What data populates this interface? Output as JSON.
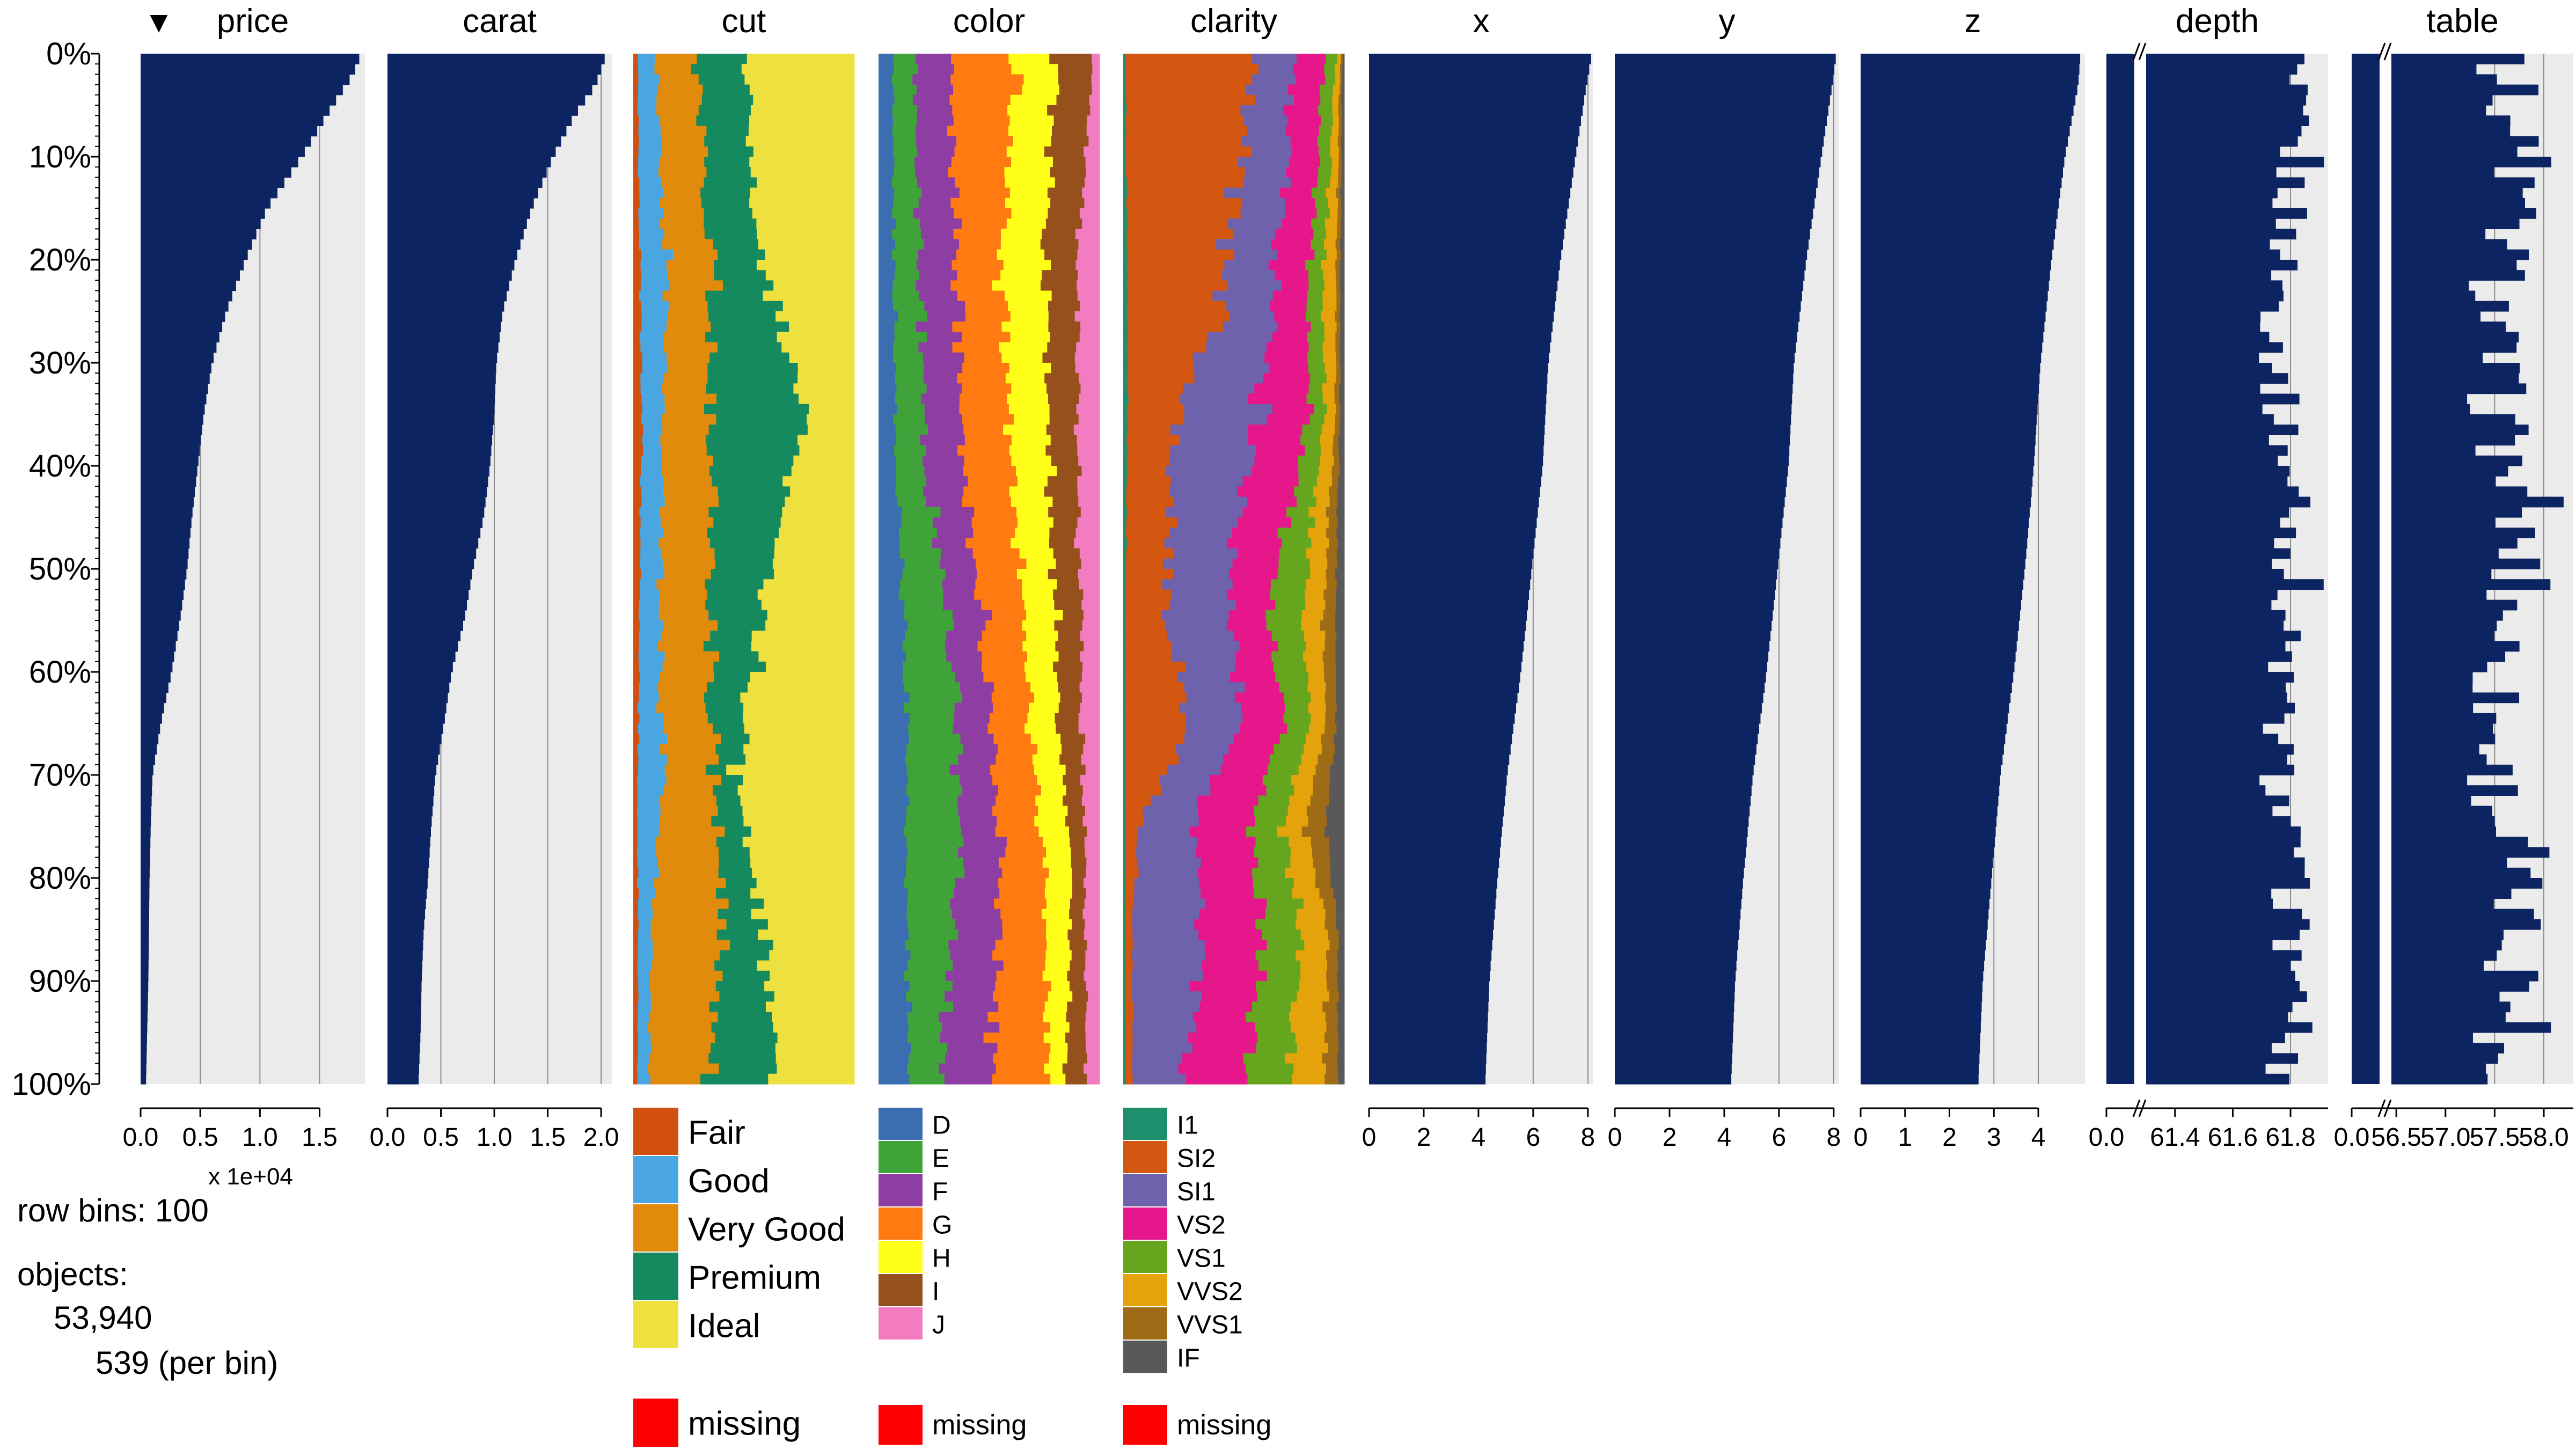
{
  "chart_data": {
    "type": "tableplot",
    "sort_column": "price",
    "sort_marker": "▼",
    "y_tick_labels": [
      "0%",
      "10%",
      "20%",
      "30%",
      "40%",
      "50%",
      "60%",
      "70%",
      "80%",
      "90%",
      "100%"
    ],
    "row_bins_text": "row bins: 100",
    "objects_label": "objects:",
    "objects_count": "53,940",
    "per_bin_text": "539 (per bin)",
    "missing_label": "missing",
    "colors": {
      "bar": "#0c2461",
      "panel_bg": "#ebebeb",
      "grid": "#8c8c8c",
      "missing": "#ff0000",
      "cut": [
        "#d14f0f",
        "#4aa6e0",
        "#e08b0c",
        "#158a5e",
        "#ede03f"
      ],
      "color": [
        "#3a6eb0",
        "#40a33a",
        "#8e3ea3",
        "#ff7a10",
        "#ffff1a",
        "#96501c",
        "#f27cbf"
      ],
      "clarity": [
        "#1d8f6c",
        "#d35710",
        "#6e62ad",
        "#e6168b",
        "#66a61e",
        "#e4a30a",
        "#9e6b16",
        "#595959"
      ]
    },
    "numeric_columns": [
      {
        "name": "price",
        "xlim": [
          0,
          18800
        ],
        "ticks": [
          0,
          5000,
          10000,
          15000
        ],
        "tick_labels": [
          "0.0",
          "0.5",
          "1.0",
          "1.5"
        ],
        "multiplier_text": "x 1e+04",
        "anchors": [
          [
            0,
            18500
          ],
          [
            2,
            17800
          ],
          [
            5,
            16100
          ],
          [
            10,
            13500
          ],
          [
            15,
            10600
          ],
          [
            20,
            8800
          ],
          [
            25,
            7200
          ],
          [
            30,
            6000
          ],
          [
            35,
            5300
          ],
          [
            40,
            4800
          ],
          [
            45,
            4300
          ],
          [
            50,
            3900
          ],
          [
            55,
            3300
          ],
          [
            60,
            2600
          ],
          [
            65,
            1700
          ],
          [
            70,
            1000
          ],
          [
            75,
            850
          ],
          [
            80,
            750
          ],
          [
            85,
            700
          ],
          [
            90,
            650
          ],
          [
            95,
            550
          ],
          [
            100,
            450
          ]
        ]
      },
      {
        "name": "carat",
        "xlim": [
          0,
          2.1
        ],
        "ticks": [
          0,
          0.5,
          1.0,
          1.5,
          2.0
        ],
        "tick_labels": [
          "0.0",
          "0.5",
          "1.0",
          "1.5",
          "2.0"
        ],
        "anchors": [
          [
            0,
            2.05
          ],
          [
            3,
            1.95
          ],
          [
            6,
            1.75
          ],
          [
            10,
            1.55
          ],
          [
            15,
            1.35
          ],
          [
            20,
            1.2
          ],
          [
            25,
            1.08
          ],
          [
            30,
            1.02
          ],
          [
            35,
            1.0
          ],
          [
            40,
            0.96
          ],
          [
            45,
            0.9
          ],
          [
            50,
            0.8
          ],
          [
            55,
            0.72
          ],
          [
            60,
            0.6
          ],
          [
            65,
            0.53
          ],
          [
            70,
            0.45
          ],
          [
            75,
            0.41
          ],
          [
            80,
            0.38
          ],
          [
            85,
            0.34
          ],
          [
            90,
            0.32
          ],
          [
            95,
            0.31
          ],
          [
            100,
            0.29
          ]
        ]
      },
      {
        "name": "x",
        "xlim": [
          0,
          8.2
        ],
        "ticks": [
          0,
          2,
          4,
          6,
          8
        ],
        "tick_labels": [
          "0",
          "2",
          "4",
          "6",
          "8"
        ],
        "anchors": [
          [
            0,
            8.15
          ],
          [
            3,
            7.95
          ],
          [
            10,
            7.55
          ],
          [
            20,
            7.0
          ],
          [
            30,
            6.55
          ],
          [
            40,
            6.35
          ],
          [
            50,
            5.95
          ],
          [
            60,
            5.55
          ],
          [
            70,
            5.05
          ],
          [
            80,
            4.7
          ],
          [
            90,
            4.4
          ],
          [
            100,
            4.25
          ]
        ]
      },
      {
        "name": "y",
        "xlim": [
          0,
          8.2
        ],
        "ticks": [
          0,
          2,
          4,
          6,
          8
        ],
        "tick_labels": [
          "0",
          "2",
          "4",
          "6",
          "8"
        ],
        "anchors": [
          [
            0,
            8.1
          ],
          [
            3,
            7.95
          ],
          [
            10,
            7.55
          ],
          [
            20,
            7.0
          ],
          [
            30,
            6.55
          ],
          [
            40,
            6.35
          ],
          [
            50,
            5.95
          ],
          [
            60,
            5.55
          ],
          [
            70,
            5.05
          ],
          [
            80,
            4.7
          ],
          [
            90,
            4.4
          ],
          [
            100,
            4.25
          ]
        ]
      },
      {
        "name": "z",
        "xlim": [
          0,
          5.05
        ],
        "ticks": [
          0,
          1,
          2,
          3,
          4
        ],
        "tick_labels": [
          "0",
          "1",
          "2",
          "3",
          "4"
        ],
        "anchors": [
          [
            0,
            4.95
          ],
          [
            3,
            4.9
          ],
          [
            10,
            4.6
          ],
          [
            20,
            4.3
          ],
          [
            30,
            4.05
          ],
          [
            40,
            3.9
          ],
          [
            50,
            3.7
          ],
          [
            60,
            3.45
          ],
          [
            70,
            3.15
          ],
          [
            80,
            2.95
          ],
          [
            90,
            2.75
          ],
          [
            100,
            2.65
          ]
        ]
      },
      {
        "name": "depth",
        "broken_axis": true,
        "low_value": 0.0,
        "break_start": 61.3,
        "xlim": [
          61.3,
          61.93
        ],
        "ticks": [
          61.4,
          61.6,
          61.8
        ],
        "tick_labels": [
          "0.0",
          "61.4",
          "61.6",
          "61.8"
        ],
        "base": 61.78,
        "amp": 0.1
      },
      {
        "name": "table",
        "broken_axis": true,
        "low_value": 0.0,
        "break_start": 56.45,
        "xlim": [
          56.45,
          58.3
        ],
        "ticks": [
          56.5,
          57.0,
          57.5,
          58.0
        ],
        "tick_labels": [
          "0.0",
          "56.5",
          "57.0",
          "57.5",
          "58.0"
        ],
        "base": 57.6,
        "amp": 0.45
      }
    ],
    "categorical_columns": [
      {
        "name": "cut",
        "categories": [
          "Fair",
          "Good",
          "Very Good",
          "Premium",
          "Ideal"
        ],
        "anchors": [
          [
            0,
            [
              0.02,
              0.08,
              0.19,
              0.22,
              0.49
            ]
          ],
          [
            20,
            [
              0.03,
              0.12,
              0.2,
              0.23,
              0.42
            ]
          ],
          [
            35,
            [
              0.04,
              0.1,
              0.21,
              0.42,
              0.23
            ]
          ],
          [
            50,
            [
              0.03,
              0.09,
              0.23,
              0.27,
              0.38
            ]
          ],
          [
            70,
            [
              0.02,
              0.12,
              0.22,
              0.11,
              0.53
            ]
          ],
          [
            85,
            [
              0.02,
              0.06,
              0.32,
              0.17,
              0.43
            ]
          ],
          [
            100,
            [
              0.02,
              0.05,
              0.26,
              0.31,
              0.36
            ]
          ]
        ]
      },
      {
        "name": "color",
        "categories": [
          "D",
          "E",
          "F",
          "G",
          "H",
          "I",
          "J"
        ],
        "anchors": [
          [
            0,
            [
              0.06,
              0.09,
              0.17,
              0.3,
              0.18,
              0.17,
              0.03
            ]
          ],
          [
            20,
            [
              0.07,
              0.12,
              0.16,
              0.21,
              0.2,
              0.14,
              0.1
            ]
          ],
          [
            40,
            [
              0.08,
              0.13,
              0.18,
              0.21,
              0.17,
              0.13,
              0.1
            ]
          ],
          [
            60,
            [
              0.12,
              0.22,
              0.15,
              0.18,
              0.14,
              0.11,
              0.08
            ]
          ],
          [
            80,
            [
              0.14,
              0.23,
              0.19,
              0.19,
              0.12,
              0.06,
              0.07
            ]
          ],
          [
            100,
            [
              0.14,
              0.15,
              0.23,
              0.25,
              0.08,
              0.09,
              0.06
            ]
          ]
        ]
      },
      {
        "name": "clarity",
        "categories": [
          "I1",
          "SI2",
          "SI1",
          "VS2",
          "VS1",
          "VVS2",
          "VVS1",
          "IF"
        ],
        "anchors": [
          [
            0,
            [
              0.01,
              0.58,
              0.19,
              0.13,
              0.05,
              0.02,
              0.01,
              0.01
            ]
          ],
          [
            25,
            [
              0.02,
              0.42,
              0.23,
              0.16,
              0.07,
              0.06,
              0.02,
              0.02
            ]
          ],
          [
            35,
            [
              0.02,
              0.22,
              0.37,
              0.23,
              0.07,
              0.05,
              0.02,
              0.02
            ]
          ],
          [
            55,
            [
              0.01,
              0.18,
              0.27,
              0.19,
              0.16,
              0.09,
              0.06,
              0.04
            ]
          ],
          [
            65,
            [
              0.01,
              0.28,
              0.24,
              0.19,
              0.12,
              0.07,
              0.05,
              0.04
            ]
          ],
          [
            75,
            [
              0.01,
              0.06,
              0.24,
              0.26,
              0.15,
              0.1,
              0.09,
              0.09
            ]
          ],
          [
            85,
            [
              0.01,
              0.03,
              0.34,
              0.26,
              0.16,
              0.12,
              0.05,
              0.03
            ]
          ],
          [
            100,
            [
              0.01,
              0.03,
              0.23,
              0.28,
              0.2,
              0.16,
              0.06,
              0.03
            ]
          ]
        ]
      }
    ]
  }
}
